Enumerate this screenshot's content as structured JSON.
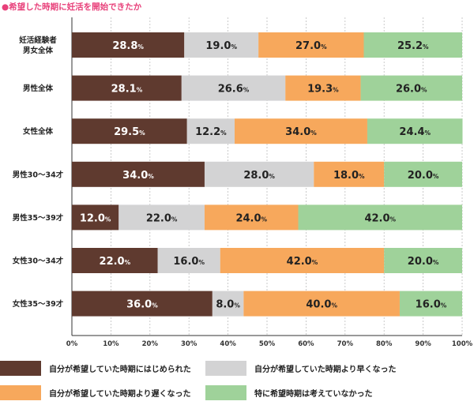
{
  "title": "●希望した時期に妊活を開始できたか",
  "chart_data": {
    "type": "bar",
    "orientation": "horizontal",
    "stacked": true,
    "title": "●希望した時期に妊活を開始できたか",
    "categories": [
      [
        "妊活経験者",
        "男女全体"
      ],
      [
        "男性全体"
      ],
      [
        "女性全体"
      ],
      [
        "男性30〜34才"
      ],
      [
        "男性35〜39才"
      ],
      [
        "女性30〜34才"
      ],
      [
        "女性35〜39才"
      ]
    ],
    "series": [
      {
        "name": "自分が希望していた時期にはじめられた",
        "color": "#5f3a2f",
        "text_color": "#ffffff",
        "values": [
          28.8,
          28.1,
          29.5,
          34.0,
          12.0,
          22.0,
          36.0
        ]
      },
      {
        "name": "自分が希望していた時期より早くなった",
        "color": "#d3d3d4",
        "text_color": "#222222",
        "values": [
          19.0,
          26.6,
          12.2,
          28.0,
          22.0,
          16.0,
          8.0
        ]
      },
      {
        "name": "自分が希望していた時期より遅くなった",
        "color": "#f7a85c",
        "text_color": "#222222",
        "values": [
          27.0,
          19.3,
          34.0,
          18.0,
          24.0,
          42.0,
          40.0
        ]
      },
      {
        "name": "特に希望時期は考えていなかった",
        "color": "#9fd29a",
        "text_color": "#222222",
        "values": [
          25.2,
          26.0,
          24.4,
          20.0,
          42.0,
          20.0,
          16.0
        ]
      }
    ],
    "percent_suffix": "%",
    "xlim": [
      0,
      100
    ],
    "xticks": [
      0,
      10,
      20,
      30,
      40,
      50,
      60,
      70,
      80,
      90,
      100
    ],
    "xtick_labels": [
      "0%",
      "10%",
      "20%",
      "30%",
      "40%",
      "50%",
      "60%",
      "70%",
      "80%",
      "90%",
      "100%"
    ],
    "gridlines": "vertical-dashed",
    "legend_position": "bottom"
  }
}
